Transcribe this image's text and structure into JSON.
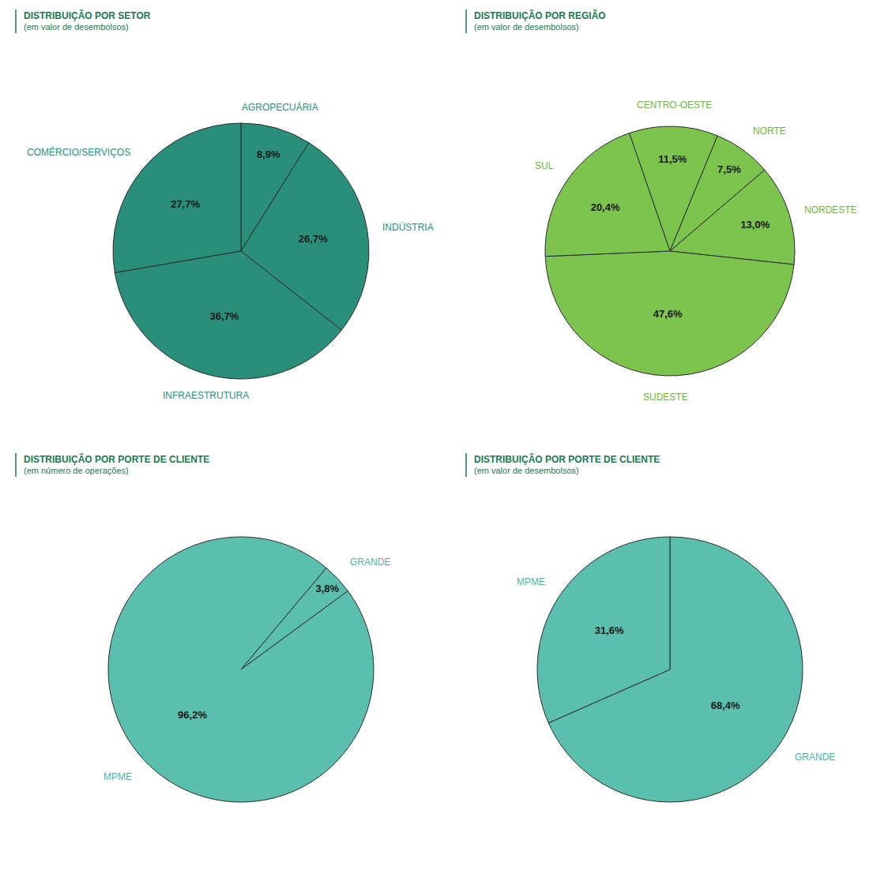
{
  "chart_data": [
    {
      "type": "pie",
      "title": "DISTRIBUIÇÃO POR SETOR",
      "subtitle": "(em valor de desembolsos)",
      "categories": [
        "AGROPECUÁRIA",
        "INDÚSTRIA",
        "INFRAESTRUTURA",
        "COMÉRCIO/SERVIÇOS"
      ],
      "values": [
        8.9,
        26.7,
        36.7,
        27.7
      ],
      "value_labels": [
        "8,9%",
        "26,7%",
        "36,7%",
        "27,7%"
      ],
      "colors": [
        "#2a8f7a",
        "#2a8f7a",
        "#2a8f7a",
        "#2a8f7a"
      ],
      "data_labels": true
    },
    {
      "type": "pie",
      "title": "DISTRIBUIÇÃO POR REGIÃO",
      "subtitle": "(em valor de desembolsos)",
      "categories": [
        "CENTRO-OESTE",
        "NORTE",
        "NORDESTE",
        "SUDESTE",
        "SUL"
      ],
      "values": [
        11.5,
        7.5,
        13.0,
        47.6,
        20.4
      ],
      "value_labels": [
        "11,5%",
        "7,5%",
        "13,0%",
        "47,6%",
        "20,4%"
      ],
      "colors": [
        "#7cc44e",
        "#7cc44e",
        "#7cc44e",
        "#7cc44e",
        "#7cc44e"
      ],
      "data_labels": true
    },
    {
      "type": "pie",
      "title": "DISTRIBUIÇÃO POR PORTE DE CLIENTE",
      "subtitle": "(em número de operações)",
      "categories": [
        "GRANDE",
        "MPME"
      ],
      "values": [
        3.8,
        96.2
      ],
      "value_labels": [
        "3,8%",
        "96,2%"
      ],
      "colors": [
        "#5bbfae",
        "#5bbfae"
      ],
      "data_labels": true
    },
    {
      "type": "pie",
      "title": "DISTRIBUIÇÃO POR PORTE DE CLIENTE",
      "subtitle": "(em valor de desembolsos)",
      "categories": [
        "GRANDE",
        "MPME"
      ],
      "values": [
        68.4,
        31.6
      ],
      "value_labels": [
        "68,4%",
        "31,6%"
      ],
      "colors": [
        "#5bbfae",
        "#5bbfae"
      ],
      "data_labels": true
    }
  ]
}
